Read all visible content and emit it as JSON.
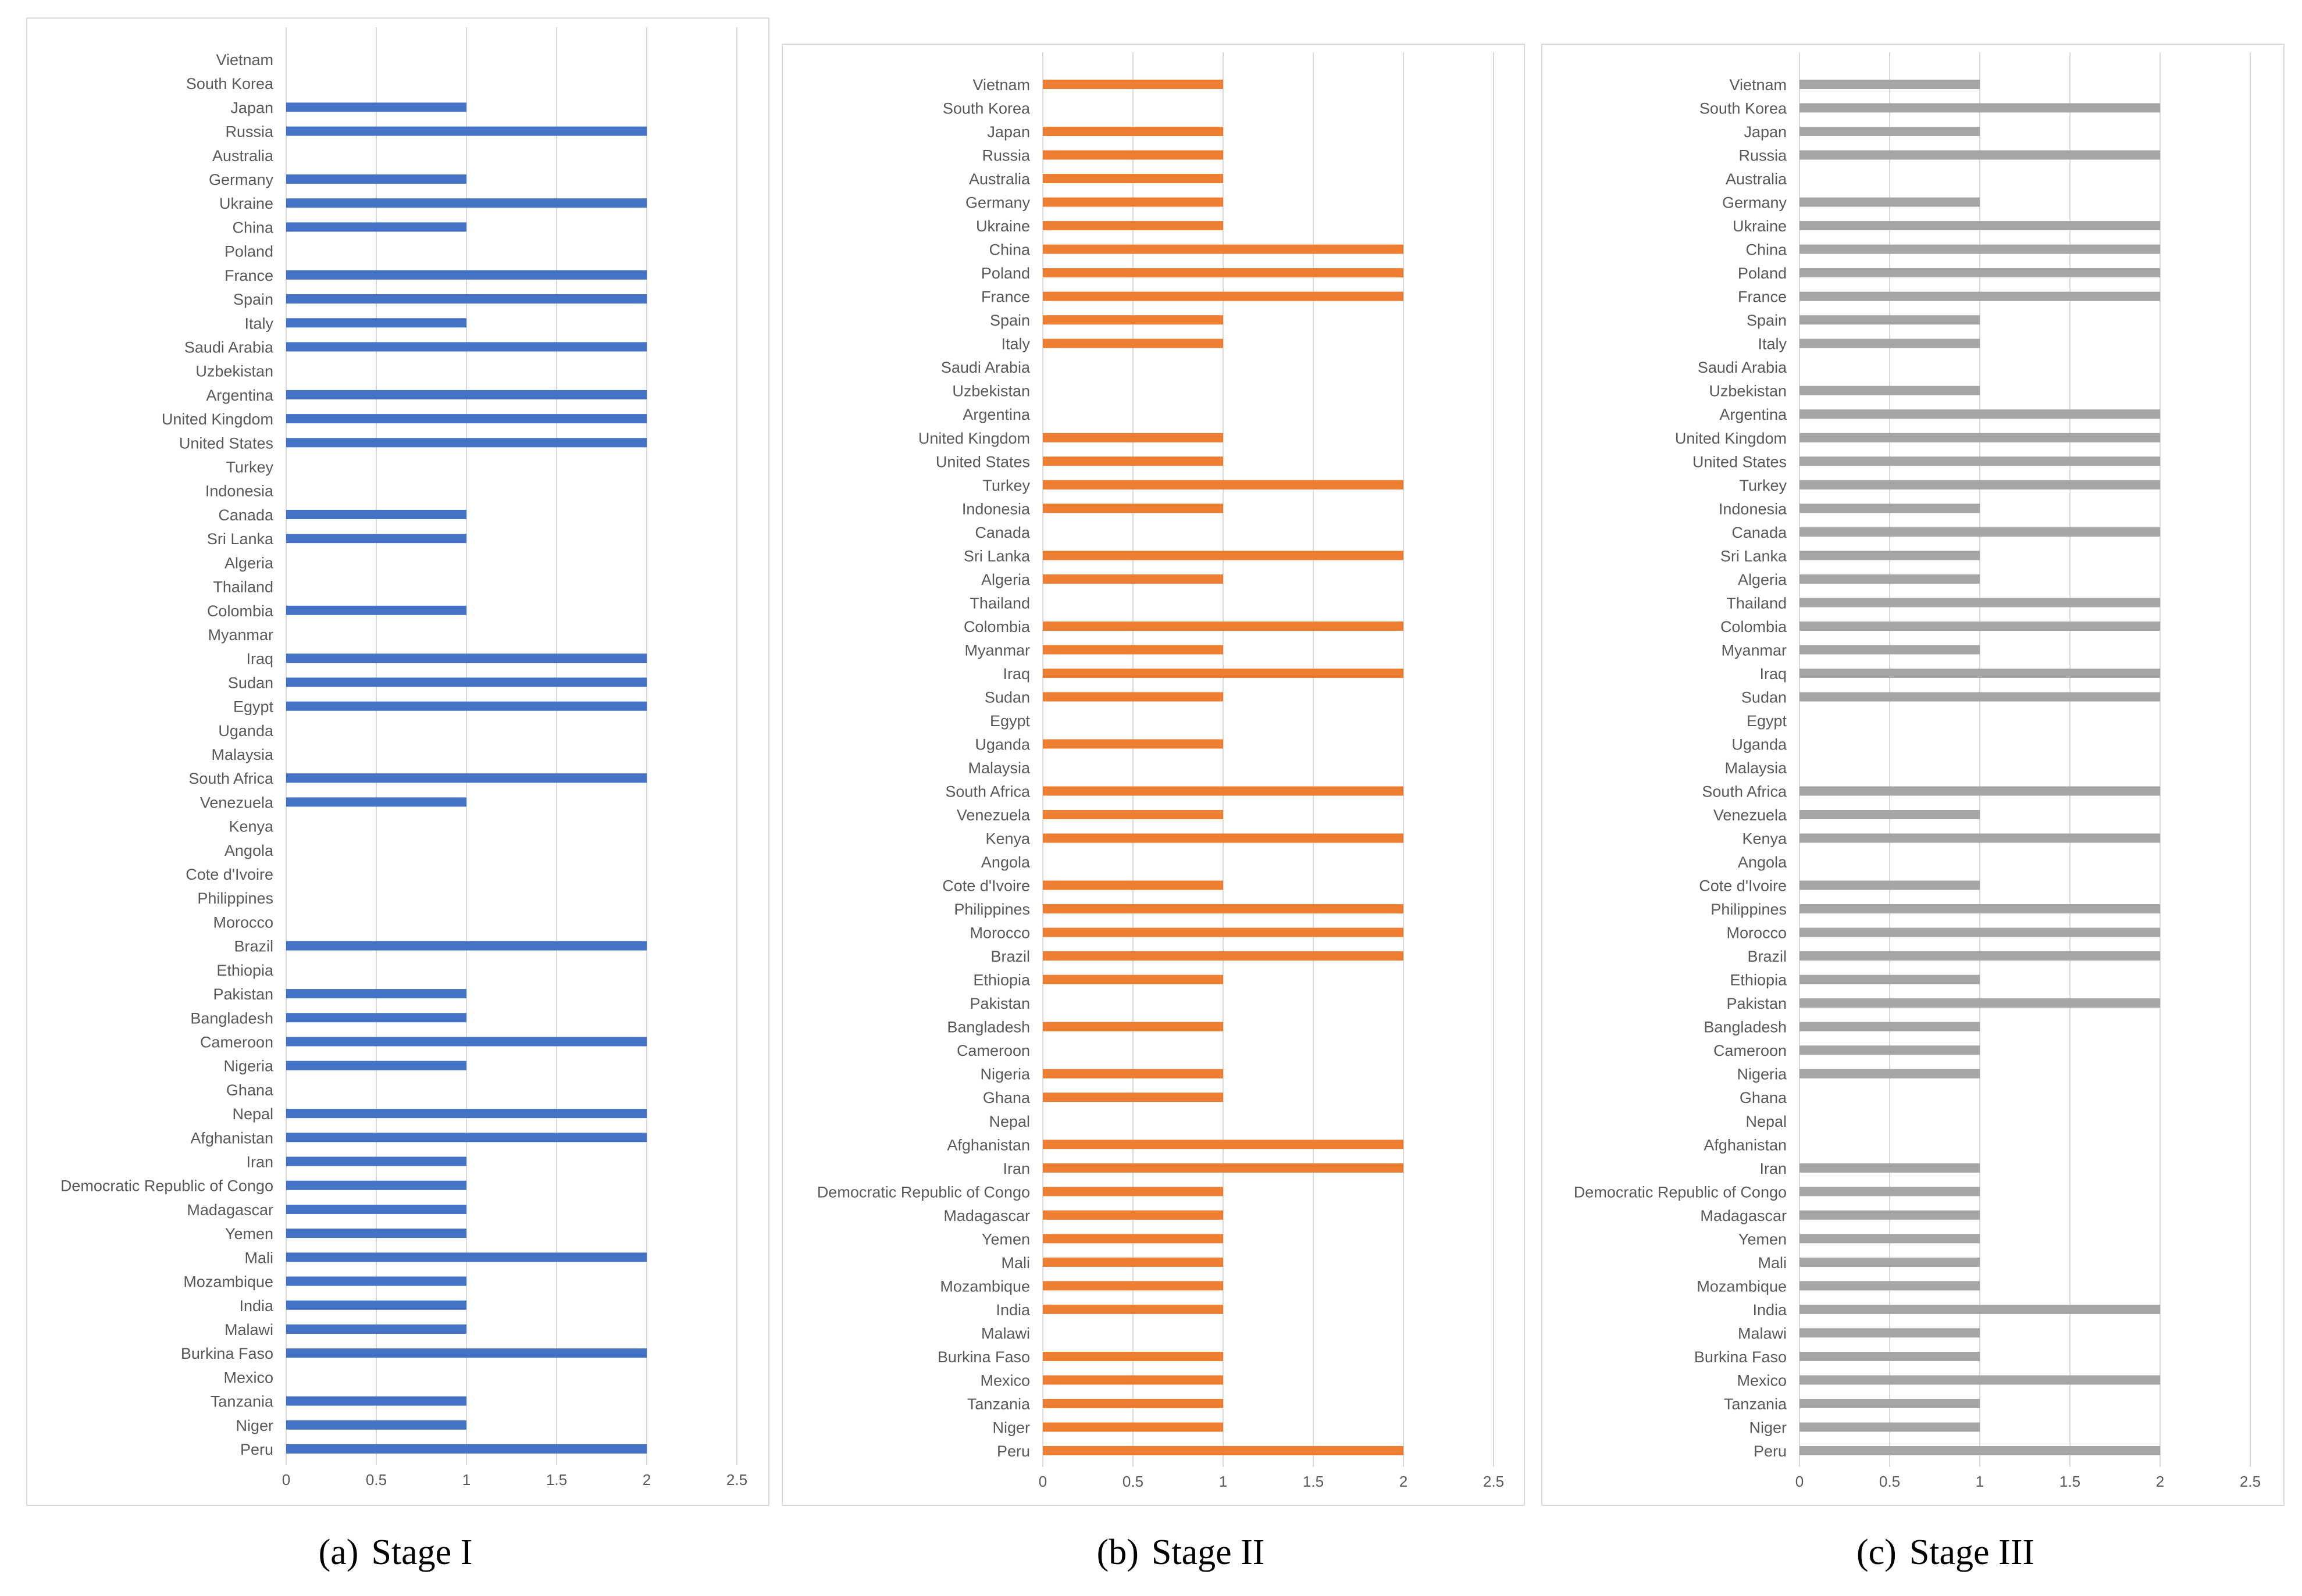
{
  "countries": [
    "Vietnam",
    "South Korea",
    "Japan",
    "Russia",
    "Australia",
    "Germany",
    "Ukraine",
    "China",
    "Poland",
    "France",
    "Spain",
    "Italy",
    "Saudi Arabia",
    "Uzbekistan",
    "Argentina",
    "United Kingdom",
    "United States",
    "Turkey",
    "Indonesia",
    "Canada",
    "Sri Lanka",
    "Algeria",
    "Thailand",
    "Colombia",
    "Myanmar",
    "Iraq",
    "Sudan",
    "Egypt",
    "Uganda",
    "Malaysia",
    "South Africa",
    "Venezuela",
    "Kenya",
    "Angola",
    "Cote d'Ivoire",
    "Philippines",
    "Morocco",
    "Brazil",
    "Ethiopia",
    "Pakistan",
    "Bangladesh",
    "Cameroon",
    "Nigeria",
    "Ghana",
    "Nepal",
    "Afghanistan",
    "Iran",
    "Democratic Republic of Congo",
    "Madagascar",
    "Yemen",
    "Mali",
    "Mozambique",
    "India",
    "Malawi",
    "Burkina Faso",
    "Mexico",
    "Tanzania",
    "Niger",
    "Peru"
  ],
  "chart_data": [
    {
      "type": "bar",
      "orientation": "horizontal",
      "caption_tag": "(a)",
      "caption_title": "Stage I",
      "color": "#4472c4",
      "x_ticks": [
        "0",
        "0.5",
        "1",
        "1.5",
        "2",
        "2.5"
      ],
      "xlim": [
        0,
        2.5
      ],
      "values": [
        0,
        0,
        1,
        2,
        0,
        1,
        2,
        1,
        0,
        2,
        2,
        1,
        2,
        0,
        2,
        2,
        2,
        0,
        0,
        1,
        1,
        0,
        0,
        1,
        0,
        2,
        2,
        2,
        0,
        0,
        2,
        1,
        0,
        0,
        0,
        0,
        0,
        2,
        0,
        1,
        1,
        2,
        1,
        0,
        2,
        2,
        1,
        1,
        1,
        1,
        2,
        1,
        1,
        1,
        2,
        0,
        1,
        1,
        2
      ]
    },
    {
      "type": "bar",
      "orientation": "horizontal",
      "caption_tag": "(b)",
      "caption_title": "Stage II",
      "color": "#ed7d31",
      "x_ticks": [
        "0",
        "0.5",
        "1",
        "1.5",
        "2",
        "2.5"
      ],
      "xlim": [
        0,
        2.5
      ],
      "values": [
        1,
        0,
        1,
        1,
        1,
        1,
        1,
        2,
        2,
        2,
        1,
        1,
        0,
        0,
        0,
        1,
        1,
        2,
        1,
        0,
        2,
        1,
        0,
        2,
        1,
        2,
        1,
        0,
        1,
        0,
        2,
        1,
        2,
        0,
        1,
        2,
        2,
        2,
        1,
        0,
        1,
        0,
        1,
        1,
        0,
        2,
        2,
        1,
        1,
        1,
        1,
        1,
        1,
        0,
        1,
        1,
        1,
        1,
        2
      ]
    },
    {
      "type": "bar",
      "orientation": "horizontal",
      "caption_tag": "(c)",
      "caption_title": "Stage III",
      "color": "#a5a5a5",
      "x_ticks": [
        "0",
        "0.5",
        "1",
        "1.5",
        "2",
        "2.5"
      ],
      "xlim": [
        0,
        2.5
      ],
      "values": [
        1,
        2,
        1,
        2,
        0,
        1,
        2,
        2,
        2,
        2,
        1,
        1,
        0,
        1,
        2,
        2,
        2,
        2,
        1,
        2,
        1,
        1,
        2,
        2,
        1,
        2,
        2,
        0,
        0,
        0,
        2,
        1,
        2,
        0,
        1,
        2,
        2,
        2,
        1,
        2,
        1,
        1,
        1,
        0,
        0,
        0,
        1,
        1,
        1,
        1,
        1,
        1,
        2,
        1,
        1,
        2,
        1,
        1,
        2
      ]
    }
  ]
}
